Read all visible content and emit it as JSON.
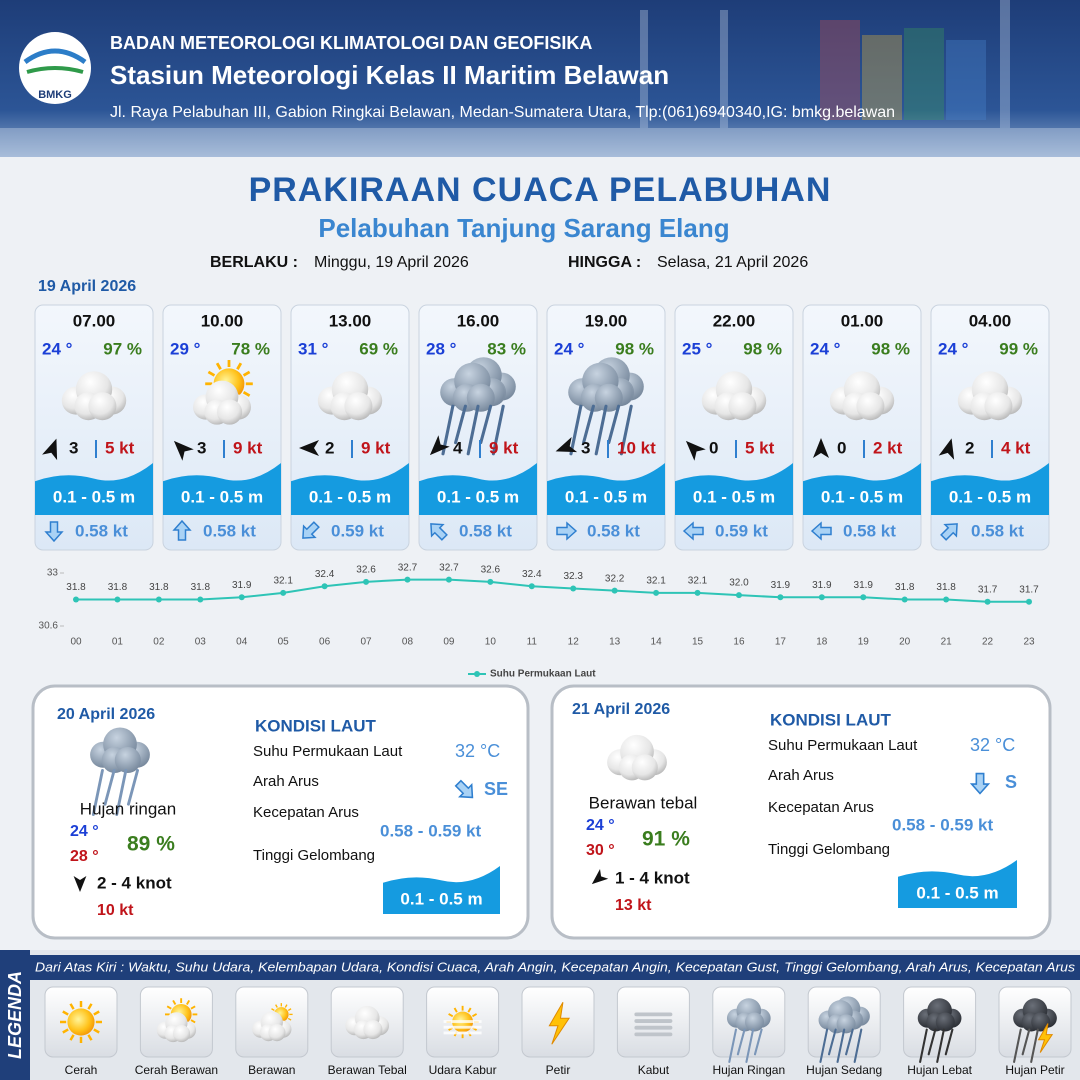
{
  "header": {
    "logo": "BMKG",
    "agency": "BADAN METEOROLOGI KLIMATOLOGI DAN GEOFISIKA",
    "station": "Stasiun Meteorologi Kelas II Maritim Belawan",
    "address": "Jl. Raya Pelabuhan III, Gabion Ringkai Belawan, Medan-Sumatera Utara, Tlp:(061)6940340,IG: bmkg.belawan"
  },
  "title": "PRAKIRAAN CUACA PELABUHAN",
  "subtitle": "Pelabuhan Tanjung Sarang Elang",
  "validity": {
    "from_label": "BERLAKU :",
    "from": "Minggu, 19 April 2026",
    "to_label": "HINGGA :",
    "to": "Selasa, 21 April 2026"
  },
  "day1": {
    "date": "19 April 2026",
    "cards": [
      {
        "time": "07.00",
        "temperature": "24 °",
        "humidity": "97 %",
        "wind_speed": "3",
        "gust": "5 kt",
        "wave_height": "0.1 - 0.5 m",
        "current_speed": "0.58 kt"
      },
      {
        "time": "10.00",
        "temperature": "29 °",
        "humidity": "78 %",
        "wind_speed": "3",
        "gust": "9 kt",
        "wave_height": "0.1 - 0.5 m",
        "current_speed": "0.58 kt"
      },
      {
        "time": "13.00",
        "temperature": "31 °",
        "humidity": "69 %",
        "wind_speed": "2",
        "gust": "9 kt",
        "wave_height": "0.1 - 0.5 m",
        "current_speed": "0.59 kt"
      },
      {
        "time": "16.00",
        "temperature": "28 °",
        "humidity": "83 %",
        "wind_speed": "4",
        "gust": "9 kt",
        "wave_height": "0.1 - 0.5 m",
        "current_speed": "0.58 kt"
      },
      {
        "time": "19.00",
        "temperature": "24 °",
        "humidity": "98 %",
        "wind_speed": "3",
        "gust": "10 kt",
        "wave_height": "0.1 - 0.5 m",
        "current_speed": "0.58 kt"
      },
      {
        "time": "22.00",
        "temperature": "25 °",
        "humidity": "98 %",
        "wind_speed": "0",
        "gust": "5 kt",
        "wave_height": "0.1 - 0.5 m",
        "current_speed": "0.59 kt"
      },
      {
        "time": "01.00",
        "temperature": "24 °",
        "humidity": "98 %",
        "wind_speed": "0",
        "gust": "2 kt",
        "wave_height": "0.1 - 0.5 m",
        "current_speed": "0.58 kt"
      },
      {
        "time": "04.00",
        "temperature": "24 °",
        "humidity": "99 %",
        "wind_speed": "2",
        "gust": "4 kt",
        "wave_height": "0.1 - 0.5 m",
        "current_speed": "0.58 kt"
      }
    ]
  },
  "chart_data": {
    "type": "line",
    "categories": [
      "00",
      "01",
      "02",
      "03",
      "04",
      "05",
      "06",
      "07",
      "08",
      "09",
      "10",
      "11",
      "12",
      "13",
      "14",
      "15",
      "16",
      "17",
      "18",
      "19",
      "20",
      "21",
      "22",
      "23"
    ],
    "series": [
      {
        "name": "Suhu Permukaan Laut",
        "color": "#2ec4b6",
        "values": [
          31.8,
          31.8,
          31.8,
          31.8,
          31.9,
          32.1,
          32.4,
          32.6,
          32.7,
          32.7,
          32.6,
          32.4,
          32.3,
          32.2,
          32.1,
          32.1,
          32.0,
          31.9,
          31.9,
          31.9,
          31.8,
          31.8,
          31.7,
          31.7
        ],
        "value_labels": [
          "31.8",
          "31.8",
          "31.8",
          "31.8",
          "31.9",
          "32.1",
          "32.4",
          "32.6",
          "32.7",
          "32.7",
          "32.6",
          "32.4",
          "32.3",
          "32.2",
          "32.1",
          "32.1",
          "32.0",
          "31.9",
          "31.9",
          "31.9",
          "31.8",
          "31.8",
          "31.7",
          "31.7"
        ]
      }
    ],
    "ylim": [
      30.6,
      33
    ],
    "yticks": [
      30.6,
      33
    ],
    "grid": false,
    "legend": "bottom"
  },
  "days": [
    {
      "date": "20 April 2026",
      "weather": "Hujan ringan",
      "temp_min": "24 °",
      "temp_max": "28 °",
      "humidity": "89 %",
      "wind": "2 - 4 knot",
      "gust": "10 kt",
      "sea": {
        "heading": "KONDISI LAUT",
        "sst_label": "Suhu Permukaan Laut",
        "sst": "32 °C",
        "current_dir_label": "Arah Arus",
        "current_dir": "SE",
        "current_speed_label": "Kecepatan Arus",
        "current_speed": "0.58 - 0.59 kt",
        "wave_label": "Tinggi Gelombang",
        "wave": "0.1 - 0.5 m"
      }
    },
    {
      "date": "21 April 2026",
      "weather": "Berawan tebal",
      "temp_min": "24 °",
      "temp_max": "30 °",
      "humidity": "91 %",
      "wind": "1 - 4 knot",
      "gust": "13 kt",
      "sea": {
        "heading": "KONDISI LAUT",
        "sst_label": "Suhu Permukaan Laut",
        "sst": "32 °C",
        "current_dir_label": "Arah Arus",
        "current_dir": "S",
        "current_speed_label": "Kecepatan Arus",
        "current_speed": "0.58 - 0.59 kt",
        "wave_label": "Tinggi Gelombang",
        "wave": "0.1 - 0.5 m"
      }
    }
  ],
  "legend": {
    "title": "LEGENDA",
    "description": "Dari Atas Kiri : Waktu, Suhu Udara, Kelembapan Udara, Kondisi Cuaca, Arah Angin, Kecepatan Angin, Kecepatan Gust, Tinggi Gelombang, Arah Arus, Kecepatan Arus",
    "items": [
      "Cerah",
      "Cerah Berawan",
      "Berawan",
      "Berawan Tebal",
      "Udara Kabur",
      "Petir",
      "Kabut",
      "Hujan Ringan",
      "Hujan Sedang",
      "Hujan Lebat",
      "Hujan Petir"
    ]
  }
}
